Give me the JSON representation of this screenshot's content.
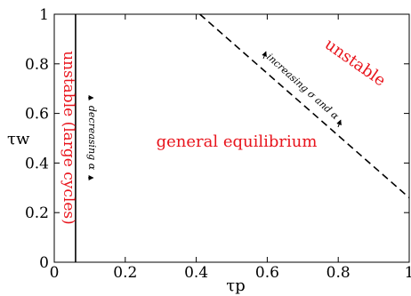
{
  "chart_data": {
    "type": "line",
    "title": "",
    "xlabel": "τp",
    "ylabel": "τw",
    "xlim": [
      0,
      1
    ],
    "ylim": [
      0,
      1
    ],
    "xticks": [
      "0",
      "0.2",
      "0.4",
      "0.6",
      "0.8",
      "1"
    ],
    "yticks": [
      "0",
      "0.2",
      "0.4",
      "0.6",
      "0.8",
      "1"
    ],
    "grid": false,
    "legend": "none",
    "series": [
      {
        "style": "solid",
        "x": [
          0.06,
          0.06
        ],
        "y": [
          0,
          1
        ]
      },
      {
        "style": "dashed",
        "x": [
          0.41,
          1.0
        ],
        "y": [
          1.0,
          0.26
        ]
      }
    ],
    "annotations": {
      "region_left": "unstable (large cycles)",
      "region_center": "general equilibrium",
      "region_right": "unstable",
      "arrow_vertical_label": "decreasing α",
      "arrow_diagonal_label": "increasing σ and α"
    },
    "colors": {
      "region_text": "#e8141c",
      "lines": "#000000"
    }
  }
}
